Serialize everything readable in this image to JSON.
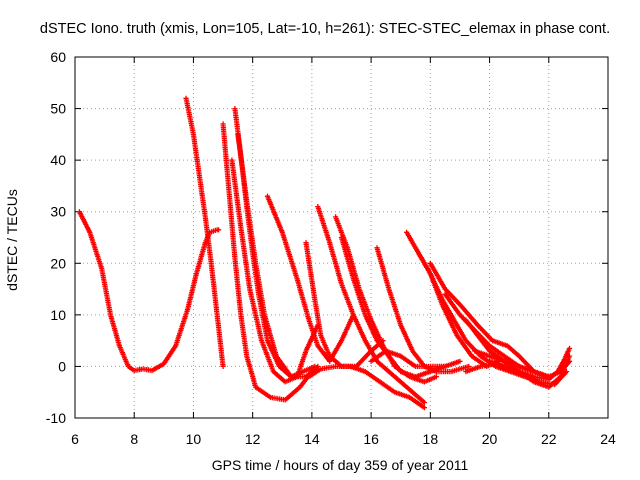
{
  "chart_data": {
    "type": "scatter",
    "title": "dSTEC Iono. truth (xmis, Lon=105, Lat=-10, h=261): STEC-STEC_elemax in phase cont.",
    "xlabel": "GPS time / hours of day 359 of year 2011",
    "ylabel": "dSTEC  / TECUs",
    "xlim": [
      6,
      24
    ],
    "ylim": [
      -10,
      60
    ],
    "xticks": [
      "6",
      "8",
      "10",
      "12",
      "14",
      "16",
      "18",
      "20",
      "22",
      "24"
    ],
    "yticks": [
      "-10",
      "0",
      "10",
      "20",
      "30",
      "40",
      "50",
      "60"
    ],
    "grid": true,
    "marker": "+",
    "color": "#ff0000",
    "series": [
      {
        "x": [
          6.15,
          6.5,
          6.9,
          7.2,
          7.5,
          7.8,
          8.0,
          8.3,
          8.6,
          9.0,
          9.4,
          9.8,
          10.1,
          10.4,
          10.55,
          10.8,
          10.85
        ],
        "y": [
          30,
          26,
          19,
          10,
          4,
          0,
          -0.8,
          -0.5,
          -0.8,
          0.5,
          4,
          11,
          18,
          24,
          26,
          26.5,
          26.5
        ]
      },
      {
        "x": [
          9.75,
          10.0,
          10.2,
          10.4,
          10.6,
          10.8,
          11.0
        ],
        "y": [
          52,
          45,
          37,
          29,
          20,
          10,
          0
        ]
      },
      {
        "x": [
          11.0,
          11.2,
          11.4,
          11.6,
          11.8,
          12.1,
          12.6,
          13.1,
          13.6,
          14.0
        ],
        "y": [
          47,
          34,
          21,
          10,
          2,
          -4,
          -6,
          -6.5,
          -4,
          -1
        ]
      },
      {
        "x": [
          11.4,
          11.6,
          11.8,
          12.0,
          12.2,
          12.5,
          12.9,
          13.3,
          13.7,
          14.1
        ],
        "y": [
          50,
          41,
          31,
          22,
          14,
          5,
          0,
          -2,
          -1,
          0
        ]
      },
      {
        "x": [
          11.5,
          11.8,
          12.1,
          12.4,
          12.8,
          13.3,
          13.8,
          14.2
        ],
        "y": [
          45,
          32,
          20,
          10,
          2,
          -2,
          -2,
          0
        ]
      },
      {
        "x": [
          11.3,
          11.6,
          11.9,
          12.3,
          12.7,
          13.1,
          13.5,
          13.8,
          14.2
        ],
        "y": [
          40,
          27,
          15,
          5,
          -1,
          -3,
          -2,
          3,
          8
        ]
      },
      {
        "x": [
          12.5,
          13.0,
          13.5,
          13.9,
          14.2,
          14.6,
          15.0,
          15.4
        ],
        "y": [
          33,
          26,
          17,
          9,
          4,
          1,
          5,
          10
        ]
      },
      {
        "x": [
          13.8,
          14.1,
          14.3,
          14.6,
          15.0,
          15.5,
          16.0,
          16.4
        ],
        "y": [
          24,
          13,
          6,
          2,
          0,
          0,
          3,
          5
        ]
      },
      {
        "x": [
          14.2,
          14.6,
          15.0,
          15.4,
          15.8,
          16.2,
          16.8,
          17.4,
          17.8
        ],
        "y": [
          31,
          24,
          16,
          10,
          5,
          1,
          -2,
          -5,
          -7
        ]
      },
      {
        "x": [
          14.8,
          15.2,
          15.6,
          16.0,
          16.4,
          16.8,
          17.3,
          17.8,
          18.2
        ],
        "y": [
          29,
          23,
          15,
          9,
          4,
          0,
          -2,
          -3,
          -2
        ]
      },
      {
        "x": [
          15.0,
          15.4,
          15.8,
          16.2,
          16.6,
          17.0,
          17.5,
          18.0,
          18.5
        ],
        "y": [
          25,
          17,
          10,
          5,
          2,
          -1,
          -2,
          -1,
          0
        ]
      },
      {
        "x": [
          13.9,
          14.3,
          14.8,
          15.3,
          15.8,
          16.3,
          16.8,
          17.3,
          17.8
        ],
        "y": [
          -2,
          -0.5,
          0,
          0,
          -1,
          -3,
          -5,
          -6,
          -8
        ]
      },
      {
        "x": [
          16.2,
          16.6,
          17.0,
          17.4,
          17.8,
          18.2,
          18.7,
          19.3
        ],
        "y": [
          23,
          15,
          8,
          3,
          0,
          -1,
          -1,
          0
        ]
      },
      {
        "x": [
          16.0,
          16.5,
          17.0,
          17.5,
          18.0,
          18.5,
          19.0
        ],
        "y": [
          1,
          3,
          2,
          0,
          0,
          0,
          1
        ]
      },
      {
        "x": [
          17.2,
          17.6,
          18.0,
          18.4,
          18.9,
          19.4,
          19.9,
          20.3
        ],
        "y": [
          26,
          22,
          18,
          12,
          6,
          2,
          0,
          1
        ]
      },
      {
        "x": [
          17.6,
          18.0,
          18.4,
          18.8,
          19.2,
          19.7,
          20.2,
          20.7,
          21.2
        ],
        "y": [
          22,
          18,
          13,
          9,
          5,
          2,
          0,
          -1,
          -2
        ]
      },
      {
        "x": [
          18.0,
          18.5,
          19.0,
          19.6,
          20.1,
          20.6,
          21.0,
          21.5
        ],
        "y": [
          20,
          15,
          12,
          8,
          5,
          4,
          2,
          -1
        ]
      },
      {
        "x": [
          18.5,
          19.0,
          19.5,
          20.0,
          20.5,
          21.0,
          21.5,
          22.0
        ],
        "y": [
          14,
          10,
          7,
          4,
          2,
          0,
          -1,
          -2
        ]
      },
      {
        "x": [
          19.2,
          19.6,
          20.0,
          20.5,
          21.0,
          21.5,
          22.0,
          22.4,
          22.7
        ],
        "y": [
          9,
          6,
          3,
          1,
          0,
          -1,
          -2,
          -1,
          1
        ]
      },
      {
        "x": [
          20.0,
          20.5,
          21.0,
          21.5,
          22.0,
          22.3,
          22.5,
          22.7
        ],
        "y": [
          1,
          0,
          -1,
          -2,
          -2.5,
          -1,
          1,
          3.5
        ]
      },
      {
        "x": [
          19.5,
          20.0,
          20.5,
          21.0,
          21.5,
          22.0,
          22.4,
          22.7
        ],
        "y": [
          3,
          2,
          1,
          -1,
          -3,
          -4,
          -2,
          2
        ]
      },
      {
        "x": [
          19.2,
          19.7,
          20.2,
          20.7,
          21.2,
          21.7,
          22.2,
          22.6
        ],
        "y": [
          -1,
          0,
          0.5,
          -0.5,
          -2,
          -3,
          -3.5,
          -1
        ]
      }
    ]
  }
}
